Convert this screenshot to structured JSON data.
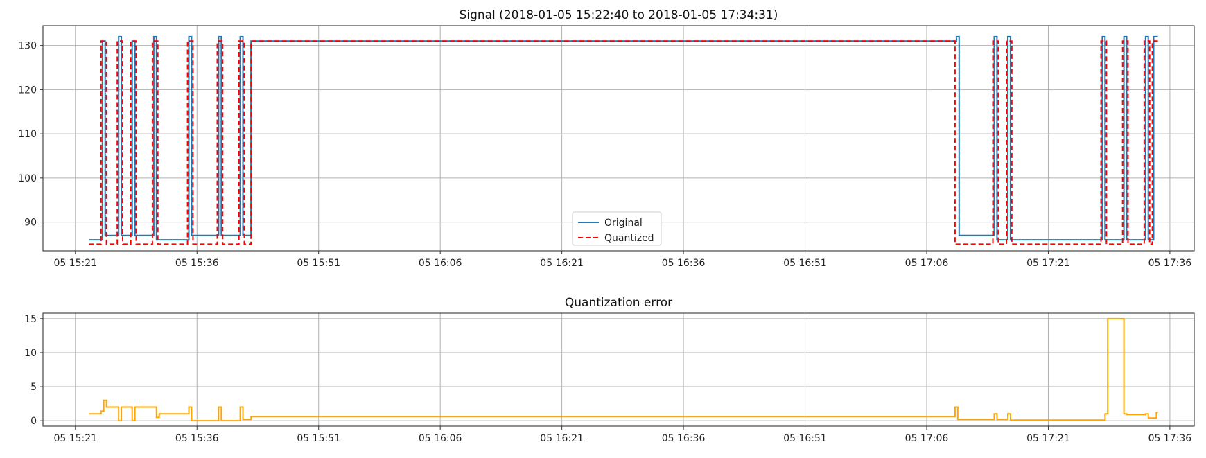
{
  "chart_data": [
    {
      "type": "line",
      "title": "Signal (2018-01-05 15:22:40 to 2018-01-05 17:34:31)",
      "xlabel": "",
      "ylabel": "",
      "xlim": [
        "2018-01-05 15:17:00",
        "2018-01-05 17:39:00"
      ],
      "ylim": [
        83.5,
        134.5
      ],
      "x_ticks": [
        "05 15:21",
        "05 15:36",
        "05 15:51",
        "05 16:06",
        "05 16:21",
        "05 16:36",
        "05 16:51",
        "05 17:06",
        "05 17:21",
        "05 17:36"
      ],
      "y_ticks": [
        90,
        100,
        110,
        120,
        130
      ],
      "grid": true,
      "legend": {
        "placement": "lower-center"
      },
      "series": [
        {
          "name": "Original",
          "color": "#1f77b4",
          "style": "solid",
          "x": [
            "2018-01-05 15:22:40",
            "2018-01-05 15:24:20",
            "2018-01-05 15:24:20",
            "2018-01-05 15:24:40",
            "2018-01-05 15:24:40",
            "2018-01-05 15:26:20",
            "2018-01-05 15:26:20",
            "2018-01-05 15:26:40",
            "2018-01-05 15:26:40",
            "2018-01-05 15:28:00",
            "2018-01-05 15:28:00",
            "2018-01-05 15:28:20",
            "2018-01-05 15:28:20",
            "2018-01-05 15:30:40",
            "2018-01-05 15:30:40",
            "2018-01-05 15:31:00",
            "2018-01-05 15:31:00",
            "2018-01-05 15:35:00",
            "2018-01-05 15:35:00",
            "2018-01-05 15:35:20",
            "2018-01-05 15:35:20",
            "2018-01-05 15:38:40",
            "2018-01-05 15:38:40",
            "2018-01-05 15:39:00",
            "2018-01-05 15:39:00",
            "2018-01-05 15:41:20",
            "2018-01-05 15:41:20",
            "2018-01-05 15:41:40",
            "2018-01-05 15:41:40",
            "2018-01-05 15:42:40",
            "2018-01-05 15:42:40",
            "2018-01-05 17:09:40",
            "2018-01-05 17:09:40",
            "2018-01-05 17:10:00",
            "2018-01-05 17:10:00",
            "2018-01-05 17:14:20",
            "2018-01-05 17:14:20",
            "2018-01-05 17:14:40",
            "2018-01-05 17:14:40",
            "2018-01-05 17:16:00",
            "2018-01-05 17:16:00",
            "2018-01-05 17:16:20",
            "2018-01-05 17:16:20",
            "2018-01-05 17:27:40",
            "2018-01-05 17:27:40",
            "2018-01-05 17:28:00",
            "2018-01-05 17:28:00",
            "2018-01-05 17:30:20",
            "2018-01-05 17:30:20",
            "2018-01-05 17:30:40",
            "2018-01-05 17:30:40",
            "2018-01-05 17:33:00",
            "2018-01-05 17:33:00",
            "2018-01-05 17:33:20",
            "2018-01-05 17:33:20",
            "2018-01-05 17:34:00",
            "2018-01-05 17:34:00",
            "2018-01-05 17:34:31"
          ],
          "y": [
            86,
            86,
            131,
            131,
            87,
            87,
            132,
            132,
            87,
            87,
            131,
            131,
            87,
            87,
            132,
            132,
            86,
            86,
            132,
            132,
            87,
            87,
            132,
            132,
            87,
            87,
            132,
            132,
            87,
            87,
            131,
            131,
            132,
            132,
            87,
            87,
            132,
            132,
            86,
            86,
            132,
            132,
            86,
            86,
            132,
            132,
            86,
            86,
            132,
            132,
            86,
            86,
            132,
            132,
            86,
            86,
            132,
            132
          ]
        },
        {
          "name": "Quantized",
          "color": "#ff0000",
          "style": "dashed",
          "x": [
            "2018-01-05 15:22:40",
            "2018-01-05 15:24:10",
            "2018-01-05 15:24:10",
            "2018-01-05 15:24:50",
            "2018-01-05 15:24:50",
            "2018-01-05 15:26:10",
            "2018-01-05 15:26:10",
            "2018-01-05 15:26:50",
            "2018-01-05 15:26:50",
            "2018-01-05 15:27:50",
            "2018-01-05 15:27:50",
            "2018-01-05 15:28:30",
            "2018-01-05 15:28:30",
            "2018-01-05 15:30:30",
            "2018-01-05 15:30:30",
            "2018-01-05 15:31:10",
            "2018-01-05 15:31:10",
            "2018-01-05 15:34:50",
            "2018-01-05 15:34:50",
            "2018-01-05 15:35:30",
            "2018-01-05 15:35:30",
            "2018-01-05 15:38:30",
            "2018-01-05 15:38:30",
            "2018-01-05 15:39:10",
            "2018-01-05 15:39:10",
            "2018-01-05 15:41:10",
            "2018-01-05 15:41:10",
            "2018-01-05 15:41:50",
            "2018-01-05 15:41:50",
            "2018-01-05 15:42:40",
            "2018-01-05 15:42:40",
            "2018-01-05 17:09:30",
            "2018-01-05 17:09:30",
            "2018-01-05 17:14:10",
            "2018-01-05 17:14:10",
            "2018-01-05 17:14:50",
            "2018-01-05 17:14:50",
            "2018-01-05 17:15:50",
            "2018-01-05 17:15:50",
            "2018-01-05 17:16:30",
            "2018-01-05 17:16:30",
            "2018-01-05 17:27:30",
            "2018-01-05 17:27:30",
            "2018-01-05 17:28:10",
            "2018-01-05 17:28:10",
            "2018-01-05 17:30:10",
            "2018-01-05 17:30:10",
            "2018-01-05 17:30:50",
            "2018-01-05 17:30:50",
            "2018-01-05 17:32:50",
            "2018-01-05 17:32:50",
            "2018-01-05 17:33:30",
            "2018-01-05 17:33:30",
            "2018-01-05 17:33:50",
            "2018-01-05 17:33:50",
            "2018-01-05 17:34:31"
          ],
          "y": [
            85,
            85,
            131,
            131,
            85,
            85,
            131,
            131,
            85,
            85,
            131,
            131,
            85,
            85,
            131,
            131,
            85,
            85,
            131,
            131,
            85,
            85,
            131,
            131,
            85,
            85,
            131,
            131,
            85,
            85,
            131,
            131,
            85,
            85,
            131,
            131,
            85,
            85,
            131,
            131,
            85,
            85,
            131,
            131,
            85,
            85,
            131,
            131,
            85,
            85,
            131,
            131,
            85,
            85,
            131,
            131
          ]
        }
      ]
    },
    {
      "type": "line",
      "title": "Quantization error",
      "xlabel": "",
      "ylabel": "",
      "xlim": [
        "2018-01-05 15:17:00",
        "2018-01-05 17:39:00"
      ],
      "ylim": [
        -0.8,
        15.8
      ],
      "x_ticks": [
        "05 15:21",
        "05 15:36",
        "05 15:51",
        "05 16:06",
        "05 16:21",
        "05 16:36",
        "05 16:51",
        "05 17:06",
        "05 17:21",
        "05 17:36"
      ],
      "y_ticks": [
        0,
        5,
        10,
        15
      ],
      "grid": true,
      "series": [
        {
          "color": "#ffa500",
          "style": "solid",
          "x": [
            "2018-01-05 15:22:40",
            "2018-01-05 15:24:10",
            "2018-01-05 15:24:10",
            "2018-01-05 15:24:30",
            "2018-01-05 15:24:30",
            "2018-01-05 15:24:50",
            "2018-01-05 15:24:50",
            "2018-01-05 15:26:20",
            "2018-01-05 15:26:20",
            "2018-01-05 15:26:40",
            "2018-01-05 15:26:40",
            "2018-01-05 15:28:00",
            "2018-01-05 15:28:00",
            "2018-01-05 15:28:20",
            "2018-01-05 15:28:20",
            "2018-01-05 15:31:00",
            "2018-01-05 15:31:00",
            "2018-01-05 15:31:20",
            "2018-01-05 15:31:20",
            "2018-01-05 15:35:00",
            "2018-01-05 15:35:00",
            "2018-01-05 15:35:20",
            "2018-01-05 15:35:20",
            "2018-01-05 15:38:40",
            "2018-01-05 15:38:40",
            "2018-01-05 15:39:00",
            "2018-01-05 15:39:00",
            "2018-01-05 15:41:20",
            "2018-01-05 15:41:20",
            "2018-01-05 15:41:40",
            "2018-01-05 15:41:40",
            "2018-01-05 15:42:40",
            "2018-01-05 15:42:40",
            "2018-01-05 17:09:30",
            "2018-01-05 17:09:30",
            "2018-01-05 17:09:50",
            "2018-01-05 17:09:50",
            "2018-01-05 17:14:20",
            "2018-01-05 17:14:20",
            "2018-01-05 17:14:40",
            "2018-01-05 17:14:40",
            "2018-01-05 17:16:00",
            "2018-01-05 17:16:00",
            "2018-01-05 17:16:20",
            "2018-01-05 17:16:20",
            "2018-01-05 17:28:00",
            "2018-01-05 17:28:00",
            "2018-01-05 17:28:20",
            "2018-01-05 17:28:20",
            "2018-01-05 17:30:20",
            "2018-01-05 17:30:20",
            "2018-01-05 17:30:40",
            "2018-01-05 17:30:40",
            "2018-01-05 17:33:00",
            "2018-01-05 17:33:00",
            "2018-01-05 17:33:20",
            "2018-01-05 17:33:20",
            "2018-01-05 17:34:20",
            "2018-01-05 17:34:20",
            "2018-01-05 17:34:31"
          ],
          "y": [
            1,
            1,
            1.4,
            1.4,
            3,
            3,
            2,
            2,
            0,
            0,
            2,
            2,
            0,
            0,
            2,
            2,
            0.5,
            0.5,
            1,
            1,
            2,
            2,
            0,
            0,
            2,
            2,
            0,
            0,
            2,
            2,
            0.2,
            0.2,
            0.6,
            0.6,
            2,
            2,
            0.2,
            0.2,
            1,
            1,
            0.2,
            0.2,
            1,
            1,
            0.1,
            0.1,
            1,
            1,
            15,
            15,
            1,
            1,
            0.9,
            0.9,
            1,
            1,
            0.4,
            0.4,
            1.2,
            1.2
          ]
        }
      ]
    }
  ]
}
